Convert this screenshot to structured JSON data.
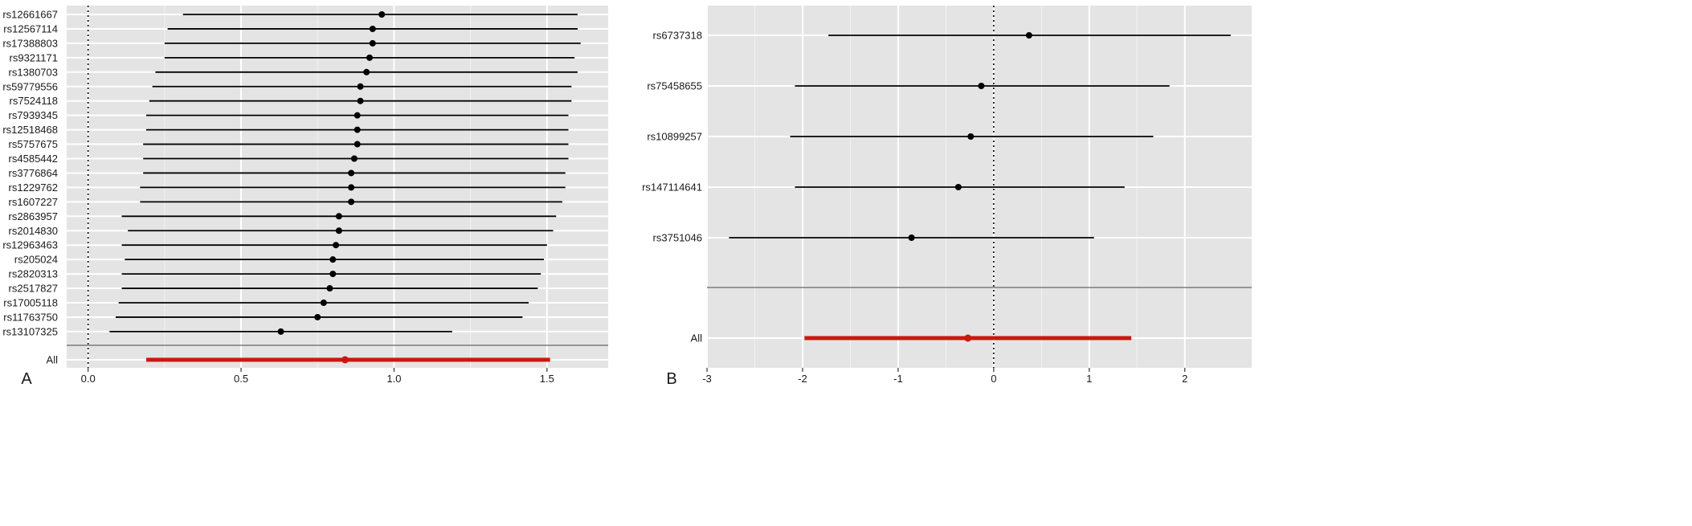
{
  "chart_data": [
    {
      "type": "forest",
      "panel_label": "A",
      "xlim": [
        -0.07,
        1.7
      ],
      "xticks": [
        0.0,
        0.5,
        1.0,
        1.5
      ],
      "xtick_labels": [
        "0.0",
        "0.5",
        "1.0",
        "1.5"
      ],
      "reference_line": 0,
      "grid": true,
      "colors": {
        "point": "#000000",
        "summary": "#c8190f",
        "background": "#e4e4e4",
        "grid": "#ffffff"
      },
      "rows": [
        {
          "label": "rs12661667",
          "estimate": 0.96,
          "lower": 0.31,
          "upper": 1.6
        },
        {
          "label": "rs12567114",
          "estimate": 0.93,
          "lower": 0.26,
          "upper": 1.6
        },
        {
          "label": "rs17388803",
          "estimate": 0.93,
          "lower": 0.25,
          "upper": 1.61
        },
        {
          "label": "rs9321171",
          "estimate": 0.92,
          "lower": 0.25,
          "upper": 1.59
        },
        {
          "label": "rs1380703",
          "estimate": 0.91,
          "lower": 0.22,
          "upper": 1.6
        },
        {
          "label": "rs59779556",
          "estimate": 0.89,
          "lower": 0.21,
          "upper": 1.58
        },
        {
          "label": "rs7524118",
          "estimate": 0.89,
          "lower": 0.2,
          "upper": 1.58
        },
        {
          "label": "rs7939345",
          "estimate": 0.88,
          "lower": 0.19,
          "upper": 1.57
        },
        {
          "label": "rs12518468",
          "estimate": 0.88,
          "lower": 0.19,
          "upper": 1.57
        },
        {
          "label": "rs5757675",
          "estimate": 0.88,
          "lower": 0.18,
          "upper": 1.57
        },
        {
          "label": "rs4585442",
          "estimate": 0.87,
          "lower": 0.18,
          "upper": 1.57
        },
        {
          "label": "rs3776864",
          "estimate": 0.86,
          "lower": 0.18,
          "upper": 1.56
        },
        {
          "label": "rs1229762",
          "estimate": 0.86,
          "lower": 0.17,
          "upper": 1.56
        },
        {
          "label": "rs1607227",
          "estimate": 0.86,
          "lower": 0.17,
          "upper": 1.55
        },
        {
          "label": "rs2863957",
          "estimate": 0.82,
          "lower": 0.11,
          "upper": 1.53
        },
        {
          "label": "rs2014830",
          "estimate": 0.82,
          "lower": 0.13,
          "upper": 1.52
        },
        {
          "label": "rs12963463",
          "estimate": 0.81,
          "lower": 0.11,
          "upper": 1.5
        },
        {
          "label": "rs205024",
          "estimate": 0.8,
          "lower": 0.12,
          "upper": 1.49
        },
        {
          "label": "rs2820313",
          "estimate": 0.8,
          "lower": 0.11,
          "upper": 1.48
        },
        {
          "label": "rs2517827",
          "estimate": 0.79,
          "lower": 0.11,
          "upper": 1.47
        },
        {
          "label": "rs17005118",
          "estimate": 0.77,
          "lower": 0.1,
          "upper": 1.44
        },
        {
          "label": "rs11763750",
          "estimate": 0.75,
          "lower": 0.09,
          "upper": 1.42
        },
        {
          "label": "rs13107325",
          "estimate": 0.63,
          "lower": 0.07,
          "upper": 1.19
        }
      ],
      "summary": {
        "label": "All",
        "estimate": 0.84,
        "lower": 0.19,
        "upper": 1.51
      }
    },
    {
      "type": "forest",
      "panel_label": "B",
      "xlim": [
        -3.0,
        2.7
      ],
      "xticks": [
        -3,
        -2,
        -1,
        0,
        1,
        2
      ],
      "xtick_labels": [
        "-3",
        "-2",
        "-1",
        "0",
        "1",
        "2"
      ],
      "reference_line": 0,
      "grid": true,
      "colors": {
        "point": "#000000",
        "summary": "#c8190f",
        "background": "#e4e4e4",
        "grid": "#ffffff"
      },
      "rows": [
        {
          "label": "rs6737318",
          "estimate": 0.37,
          "lower": -1.73,
          "upper": 2.48
        },
        {
          "label": "rs75458655",
          "estimate": -0.13,
          "lower": -2.08,
          "upper": 1.84
        },
        {
          "label": "rs10899257",
          "estimate": -0.24,
          "lower": -2.13,
          "upper": 1.67
        },
        {
          "label": "rs147114641",
          "estimate": -0.37,
          "lower": -2.08,
          "upper": 1.37
        },
        {
          "label": "rs3751046",
          "estimate": -0.86,
          "lower": -2.77,
          "upper": 1.05
        }
      ],
      "summary": {
        "label": "All",
        "estimate": -0.27,
        "lower": -1.98,
        "upper": 1.44
      }
    }
  ]
}
